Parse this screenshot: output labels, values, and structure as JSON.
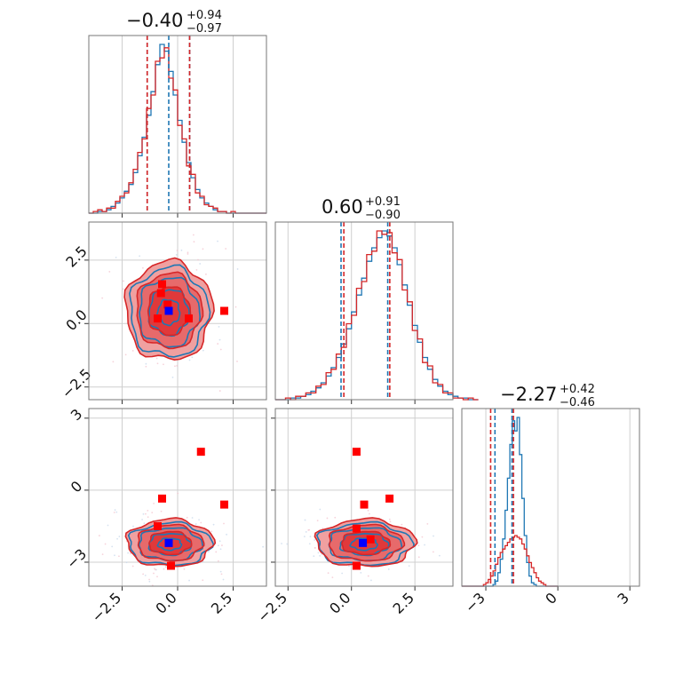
{
  "chart_data": {
    "type": "corner",
    "grid": true,
    "colors": {
      "blue": "#1f77b4",
      "red": "#d62728",
      "red_fill_light": "#f0a0a0",
      "red_fill_dark": "#e0393b",
      "truth_red": "#ff0000",
      "truth_blue": "#0000ff"
    },
    "parameters": [
      {
        "index": 0,
        "xlim": [
          -4,
          4
        ],
        "ticks": [
          -2.5,
          0.0,
          2.5
        ],
        "tick_labels": [
          "−2.5",
          "0.0",
          "2.5"
        ]
      },
      {
        "index": 1,
        "xlim": [
          -3.0,
          4.0
        ],
        "ticks": [
          -2.5,
          0.0,
          2.5
        ],
        "tick_labels": [
          "−2.5",
          "0.0",
          "2.5"
        ]
      },
      {
        "index": 2,
        "xlim": [
          -4.0,
          3.4
        ],
        "ticks": [
          -3,
          0,
          3
        ],
        "tick_labels": [
          "−3",
          "0",
          "3"
        ]
      }
    ],
    "marginal_titles": [
      {
        "main": "−0.40",
        "plus": "+0.94",
        "minus": "−0.97"
      },
      {
        "main": "0.60",
        "plus": "+0.91",
        "minus": "−0.90"
      },
      {
        "main": "−2.27",
        "plus": "+0.42",
        "minus": "−0.46"
      }
    ],
    "marginals": [
      {
        "param": 0,
        "x_start": -4.0,
        "bin_width": 0.2,
        "blue_counts": [
          0,
          0,
          1,
          1,
          2,
          4,
          6,
          9,
          13,
          17,
          24,
          34,
          45,
          58,
          72,
          88,
          100,
          96,
          84,
          70,
          55,
          42,
          30,
          21,
          14,
          9,
          6,
          4,
          2,
          1,
          1,
          0,
          0,
          0,
          0,
          0,
          0,
          0,
          0,
          0
        ],
        "red_counts": [
          0,
          1,
          2,
          1,
          3,
          3,
          7,
          10,
          12,
          18,
          26,
          36,
          44,
          62,
          70,
          90,
          92,
          98,
          80,
          73,
          52,
          44,
          28,
          23,
          12,
          10,
          5,
          4,
          3,
          1,
          1,
          0,
          1,
          0,
          0,
          0,
          0,
          0,
          0,
          0
        ],
        "quantile_lines_blue": [
          -1.37,
          -0.4,
          0.54
        ],
        "quantile_lines_red": [
          -1.37,
          0.54
        ]
      },
      {
        "param": 1,
        "x_start": -3.0,
        "bin_width": 0.2,
        "blue_counts": [
          0,
          0,
          0,
          1,
          1,
          2,
          3,
          5,
          7,
          10,
          14,
          19,
          25,
          33,
          42,
          52,
          62,
          72,
          82,
          90,
          96,
          100,
          97,
          90,
          80,
          68,
          56,
          44,
          34,
          25,
          18,
          12,
          8,
          5,
          3,
          2,
          1,
          1,
          0,
          0
        ],
        "red_counts": [
          0,
          0,
          1,
          0,
          2,
          2,
          4,
          4,
          8,
          9,
          16,
          18,
          27,
          31,
          45,
          50,
          66,
          70,
          86,
          88,
          100,
          98,
          99,
          87,
          83,
          65,
          58,
          41,
          36,
          22,
          20,
          10,
          9,
          4,
          4,
          1,
          1,
          0,
          1,
          0
        ],
        "quantile_lines_blue": [
          -0.41,
          1.43
        ],
        "quantile_lines_red": [
          -0.3,
          1.51
        ]
      },
      {
        "param": 2,
        "x_start": -4.0,
        "bin_width": 0.1,
        "blue_counts": [
          0,
          0,
          0,
          0,
          0,
          0,
          0,
          0,
          0,
          0,
          0,
          0,
          0,
          1,
          3,
          8,
          16,
          28,
          45,
          64,
          84,
          98,
          92,
          100,
          78,
          52,
          30,
          14,
          6,
          2,
          1,
          0,
          0,
          0,
          0,
          0,
          0,
          0,
          0,
          0
        ],
        "red_counts": [
          0,
          0,
          0,
          0,
          0,
          0,
          0,
          0,
          0,
          1,
          2,
          4,
          6,
          9,
          13,
          17,
          20,
          22,
          24,
          26,
          28,
          29,
          30,
          29,
          28,
          25,
          22,
          18,
          14,
          11,
          8,
          5,
          3,
          2,
          1,
          0,
          0,
          0,
          0,
          0
        ],
        "quantile_lines_blue": [
          -2.62,
          -1.91
        ],
        "quantile_lines_red": [
          -2.8,
          -1.85
        ]
      }
    ],
    "joint_panels": [
      {
        "x_param": 0,
        "y_param": 1,
        "blue_center": [
          -0.4,
          0.45
        ],
        "blue_sigma": [
          0.9,
          0.9
        ],
        "red_center": [
          -0.4,
          0.5
        ],
        "red_sigma": [
          0.95,
          0.95
        ],
        "red_truths": [
          [
            -0.7,
            1.55
          ],
          [
            -0.75,
            1.2
          ],
          [
            -0.9,
            0.2
          ],
          [
            -0.45,
            0.75
          ],
          [
            2.1,
            0.5
          ],
          [
            0.5,
            0.2
          ]
        ],
        "blue_truth": [
          -0.4,
          0.5
        ]
      },
      {
        "x_param": 0,
        "y_param": 2,
        "blue_center": [
          -0.35,
          -2.25
        ],
        "blue_sigma": [
          0.95,
          0.45
        ],
        "red_center": [
          -0.35,
          -2.2
        ],
        "red_sigma": [
          0.95,
          0.48
        ],
        "red_truths": [
          [
            1.05,
            1.6
          ],
          [
            -0.7,
            -0.35
          ],
          [
            2.1,
            -0.6
          ],
          [
            -0.9,
            -1.5
          ],
          [
            -0.3,
            -3.15
          ],
          [
            -0.4,
            -2.2
          ]
        ],
        "blue_truth": [
          -0.4,
          -2.2
        ]
      },
      {
        "x_param": 1,
        "y_param": 2,
        "blue_center": [
          0.5,
          -2.25
        ],
        "blue_sigma": [
          0.95,
          0.45
        ],
        "red_center": [
          0.55,
          -2.2
        ],
        "red_sigma": [
          0.95,
          0.48
        ],
        "red_truths": [
          [
            0.2,
            1.6
          ],
          [
            0.5,
            -0.6
          ],
          [
            1.5,
            -0.35
          ],
          [
            0.2,
            -1.6
          ],
          [
            0.2,
            -3.15
          ],
          [
            0.75,
            -2.05
          ]
        ],
        "blue_truth": [
          0.45,
          -2.2
        ]
      }
    ]
  }
}
